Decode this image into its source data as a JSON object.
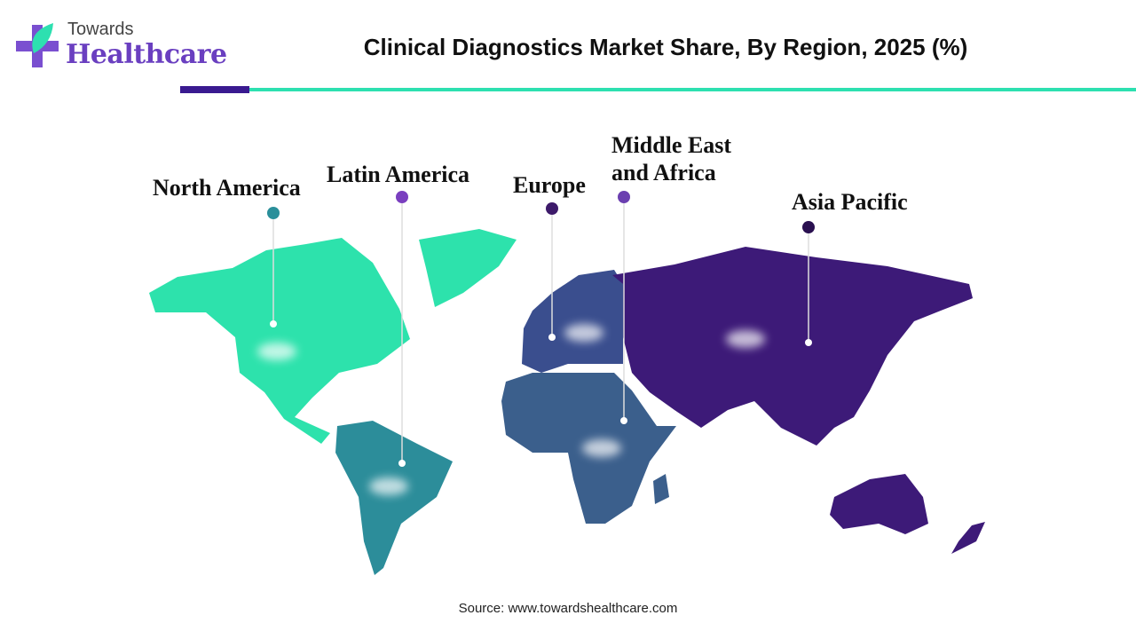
{
  "logo": {
    "line1": "Towards",
    "line2": "Healthcare"
  },
  "title": "Clinical Diagnostics Market Share, By Region, 2025 (%)",
  "regions": [
    {
      "label": "North America"
    },
    {
      "label": "Latin America"
    },
    {
      "label": "Europe"
    },
    {
      "label": "Middle East and Africa"
    },
    {
      "label": "Asia Pacific"
    }
  ],
  "source": "Source: www.towardshealthcare.com"
}
